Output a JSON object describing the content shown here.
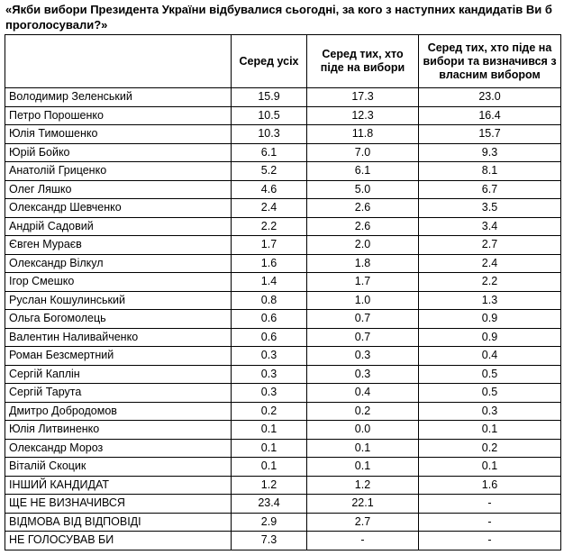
{
  "title": "«Якби вибори Президента України відбувалися сьогодні, за кого з наступних кандидатів Ви б проголосували?»",
  "table": {
    "header": [
      "Серед усіх",
      "Серед тих, хто піде на вибори",
      "Серед тих, хто піде на вибори та визначився з власним вибором"
    ],
    "rows": [
      [
        "Володимир Зеленський",
        "15.9",
        "17.3",
        "23.0"
      ],
      [
        "Петро Порошенко",
        "10.5",
        "12.3",
        "16.4"
      ],
      [
        "Юлія Тимошенко",
        "10.3",
        "11.8",
        "15.7"
      ],
      [
        "Юрій Бойко",
        "6.1",
        "7.0",
        "9.3"
      ],
      [
        "Анатолій Гриценко",
        "5.2",
        "6.1",
        "8.1"
      ],
      [
        "Олег Ляшко",
        "4.6",
        "5.0",
        "6.7"
      ],
      [
        "Олександр Шевченко",
        "2.4",
        "2.6",
        "3.5"
      ],
      [
        "Андрій Садовий",
        "2.2",
        "2.6",
        "3.4"
      ],
      [
        "Євген Мураєв",
        "1.7",
        "2.0",
        "2.7"
      ],
      [
        "Олександр Вілкул",
        "1.6",
        "1.8",
        "2.4"
      ],
      [
        "Ігор Смешко",
        "1.4",
        "1.7",
        "2.2"
      ],
      [
        "Руслан Кошулинський",
        "0.8",
        "1.0",
        "1.3"
      ],
      [
        "Ольга Богомолець",
        "0.6",
        "0.7",
        "0.9"
      ],
      [
        "Валентин Наливайченко",
        "0.6",
        "0.7",
        "0.9"
      ],
      [
        "Роман Безсмертний",
        "0.3",
        "0.3",
        "0.4"
      ],
      [
        "Сергій Каплін",
        "0.3",
        "0.3",
        "0.5"
      ],
      [
        "Сергій Тарута",
        "0.3",
        "0.4",
        "0.5"
      ],
      [
        "Дмитро Добродомов",
        "0.2",
        "0.2",
        "0.3"
      ],
      [
        "Юлія Литвиненко",
        "0.1",
        "0.0",
        "0.1"
      ],
      [
        "Олександр Мороз",
        "0.1",
        "0.1",
        "0.2"
      ],
      [
        "Віталій Скоцик",
        "0.1",
        "0.1",
        "0.1"
      ],
      [
        "ІНШИЙ КАНДИДАТ",
        "1.2",
        "1.2",
        "1.6"
      ],
      [
        "ЩЕ НЕ ВИЗНАЧИВСЯ",
        "23.4",
        "22.1",
        "-"
      ],
      [
        "ВІДМОВА ВІД ВІДПОВІДІ",
        "2.9",
        "2.7",
        "-"
      ],
      [
        "НЕ ГОЛОСУВАВ БИ",
        "7.3",
        "-",
        "-"
      ]
    ]
  }
}
